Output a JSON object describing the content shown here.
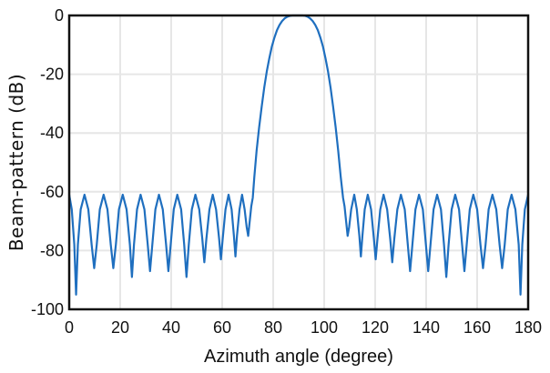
{
  "chart_data": {
    "type": "line",
    "title": "",
    "xlabel": "Azimuth angle (degree)",
    "ylabel": "Beam-pattern (dB)",
    "xlim": [
      0,
      180
    ],
    "ylim": [
      -100,
      0
    ],
    "grid": true,
    "x_ticks": [
      "0",
      "20",
      "40",
      "60",
      "80",
      "100",
      "120",
      "140",
      "160",
      "180"
    ],
    "y_ticks": [
      "0",
      "-20",
      "-40",
      "-60",
      "-80",
      "-100"
    ],
    "series": [
      {
        "color": "#1f6fbf",
        "points": [
          [
            0,
            -61
          ],
          [
            1,
            -66
          ],
          [
            2,
            -78
          ],
          [
            2.7,
            -95
          ],
          [
            3.4,
            -78
          ],
          [
            4.5,
            -66
          ],
          [
            6,
            -61
          ],
          [
            7.5,
            -66
          ],
          [
            8.8,
            -78
          ],
          [
            9.8,
            -86
          ],
          [
            10.8,
            -78
          ],
          [
            12,
            -66
          ],
          [
            13.5,
            -61
          ],
          [
            15,
            -66
          ],
          [
            16.3,
            -78
          ],
          [
            17.3,
            -86
          ],
          [
            18.3,
            -78
          ],
          [
            19.5,
            -66
          ],
          [
            21,
            -61
          ],
          [
            22.5,
            -66
          ],
          [
            23.8,
            -78
          ],
          [
            24.6,
            -89
          ],
          [
            25.4,
            -78
          ],
          [
            26.6,
            -66
          ],
          [
            28,
            -61
          ],
          [
            29.5,
            -66
          ],
          [
            30.8,
            -78
          ],
          [
            31.7,
            -87
          ],
          [
            32.6,
            -78
          ],
          [
            33.8,
            -66
          ],
          [
            35.2,
            -61
          ],
          [
            36.7,
            -66
          ],
          [
            38,
            -78
          ],
          [
            38.9,
            -87
          ],
          [
            39.8,
            -78
          ],
          [
            41,
            -66
          ],
          [
            42.4,
            -61
          ],
          [
            43.9,
            -66
          ],
          [
            45.1,
            -78
          ],
          [
            46,
            -89
          ],
          [
            46.9,
            -78
          ],
          [
            48.1,
            -66
          ],
          [
            49.5,
            -61
          ],
          [
            51,
            -66
          ],
          [
            52.2,
            -76
          ],
          [
            53,
            -84
          ],
          [
            53.8,
            -76
          ],
          [
            55,
            -66
          ],
          [
            56.3,
            -61
          ],
          [
            57.6,
            -66
          ],
          [
            58.8,
            -76
          ],
          [
            59.5,
            -83
          ],
          [
            60.2,
            -76
          ],
          [
            61.3,
            -66
          ],
          [
            62.5,
            -61
          ],
          [
            63.7,
            -66
          ],
          [
            64.6,
            -75
          ],
          [
            65.2,
            -82
          ],
          [
            65.8,
            -75
          ],
          [
            66.8,
            -66
          ],
          [
            67.8,
            -61
          ],
          [
            68.8,
            -66
          ],
          [
            69.6,
            -72
          ],
          [
            70.2,
            -75
          ],
          [
            70.8,
            -70
          ],
          [
            71.4,
            -65
          ],
          [
            72,
            -62
          ],
          [
            72.6,
            -55
          ],
          [
            73.5,
            -46
          ],
          [
            74.5,
            -38
          ],
          [
            75.5,
            -31
          ],
          [
            76.5,
            -24.5
          ],
          [
            77.5,
            -19
          ],
          [
            78.5,
            -14.5
          ],
          [
            79.5,
            -10.5
          ],
          [
            80.5,
            -7.5
          ],
          [
            81.5,
            -5
          ],
          [
            82.5,
            -3.2
          ],
          [
            83.5,
            -1.9
          ],
          [
            84.5,
            -1
          ],
          [
            85.5,
            -0.45
          ],
          [
            86.5,
            -0.15
          ],
          [
            87.5,
            0
          ],
          [
            88.5,
            0
          ],
          [
            89.5,
            0
          ],
          [
            90.5,
            0
          ],
          [
            91.5,
            0
          ],
          [
            92.5,
            -0.1
          ],
          [
            93.5,
            -0.4
          ],
          [
            94.5,
            -1
          ],
          [
            95.5,
            -1.9
          ],
          [
            96.5,
            -3.2
          ],
          [
            97.5,
            -5
          ],
          [
            98.5,
            -7.5
          ],
          [
            99.5,
            -10.5
          ],
          [
            100.5,
            -14.5
          ],
          [
            101.5,
            -19
          ],
          [
            102.5,
            -24.5
          ],
          [
            103.5,
            -31
          ],
          [
            104.5,
            -38
          ],
          [
            105.5,
            -46
          ],
          [
            106.5,
            -55
          ],
          [
            107.4,
            -62
          ],
          [
            108,
            -65
          ],
          [
            108.6,
            -70
          ],
          [
            109.2,
            -75
          ],
          [
            109.8,
            -72
          ],
          [
            110.6,
            -66
          ],
          [
            111.8,
            -61
          ],
          [
            112.8,
            -66
          ],
          [
            113.8,
            -75
          ],
          [
            114.4,
            -82
          ],
          [
            115,
            -75
          ],
          [
            115.9,
            -66
          ],
          [
            117.1,
            -61
          ],
          [
            118.4,
            -66
          ],
          [
            119.5,
            -76
          ],
          [
            120.2,
            -83
          ],
          [
            120.9,
            -76
          ],
          [
            122,
            -66
          ],
          [
            123.3,
            -61
          ],
          [
            124.7,
            -66
          ],
          [
            125.9,
            -76
          ],
          [
            126.7,
            -84
          ],
          [
            127.5,
            -76
          ],
          [
            128.7,
            -66
          ],
          [
            130.1,
            -61
          ],
          [
            131.6,
            -66
          ],
          [
            132.8,
            -78
          ],
          [
            133.7,
            -87
          ],
          [
            134.6,
            -78
          ],
          [
            135.8,
            -66
          ],
          [
            137.2,
            -61
          ],
          [
            138.7,
            -66
          ],
          [
            139.9,
            -78
          ],
          [
            140.8,
            -87
          ],
          [
            141.7,
            -78
          ],
          [
            142.9,
            -66
          ],
          [
            144.3,
            -61
          ],
          [
            145.8,
            -66
          ],
          [
            147,
            -78
          ],
          [
            147.9,
            -89
          ],
          [
            148.8,
            -78
          ],
          [
            150,
            -66
          ],
          [
            151.4,
            -61
          ],
          [
            152.9,
            -66
          ],
          [
            154.1,
            -78
          ],
          [
            155,
            -87
          ],
          [
            155.9,
            -78
          ],
          [
            157.1,
            -66
          ],
          [
            158.5,
            -61
          ],
          [
            160,
            -66
          ],
          [
            161.3,
            -78
          ],
          [
            162.3,
            -86
          ],
          [
            163.3,
            -78
          ],
          [
            164.5,
            -66
          ],
          [
            166,
            -61
          ],
          [
            167.5,
            -66
          ],
          [
            168.8,
            -78
          ],
          [
            169.8,
            -86
          ],
          [
            170.8,
            -78
          ],
          [
            172,
            -66
          ],
          [
            173.5,
            -61
          ],
          [
            175,
            -66
          ],
          [
            176.3,
            -78
          ],
          [
            177,
            -95
          ],
          [
            177.7,
            -78
          ],
          [
            178.7,
            -66
          ],
          [
            180,
            -61
          ]
        ]
      }
    ]
  }
}
